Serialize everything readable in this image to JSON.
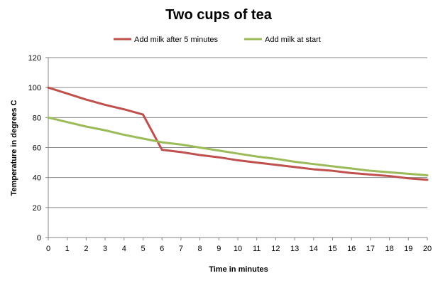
{
  "chart_data": {
    "type": "line",
    "title": "Two cups of tea",
    "xlabel": "Time in minutes",
    "ylabel": "Temperature in degrees C",
    "x": [
      0,
      1,
      2,
      3,
      4,
      5,
      6,
      7,
      8,
      9,
      10,
      11,
      12,
      13,
      14,
      15,
      16,
      17,
      18,
      19,
      20
    ],
    "xlim": [
      0,
      20
    ],
    "ylim": [
      0,
      120
    ],
    "yticks": [
      0,
      20,
      40,
      60,
      80,
      100,
      120
    ],
    "grid": true,
    "legend_position": "top",
    "series": [
      {
        "name": "Add milk after 5 minutes",
        "color": "#C0504D",
        "values": [
          100,
          96,
          92,
          88.5,
          85.5,
          82,
          58.5,
          57,
          55,
          53.5,
          51.5,
          50,
          48.5,
          47,
          45.5,
          44.5,
          43,
          42,
          41,
          39.5,
          38.5
        ]
      },
      {
        "name": "Add milk at start",
        "color": "#9BBB59",
        "values": [
          80,
          77,
          74,
          71.5,
          68.5,
          66,
          63.5,
          62,
          60,
          58,
          56,
          54,
          52.5,
          50.5,
          49,
          47.5,
          46,
          44.5,
          43.5,
          42.5,
          41.5
        ]
      }
    ]
  }
}
